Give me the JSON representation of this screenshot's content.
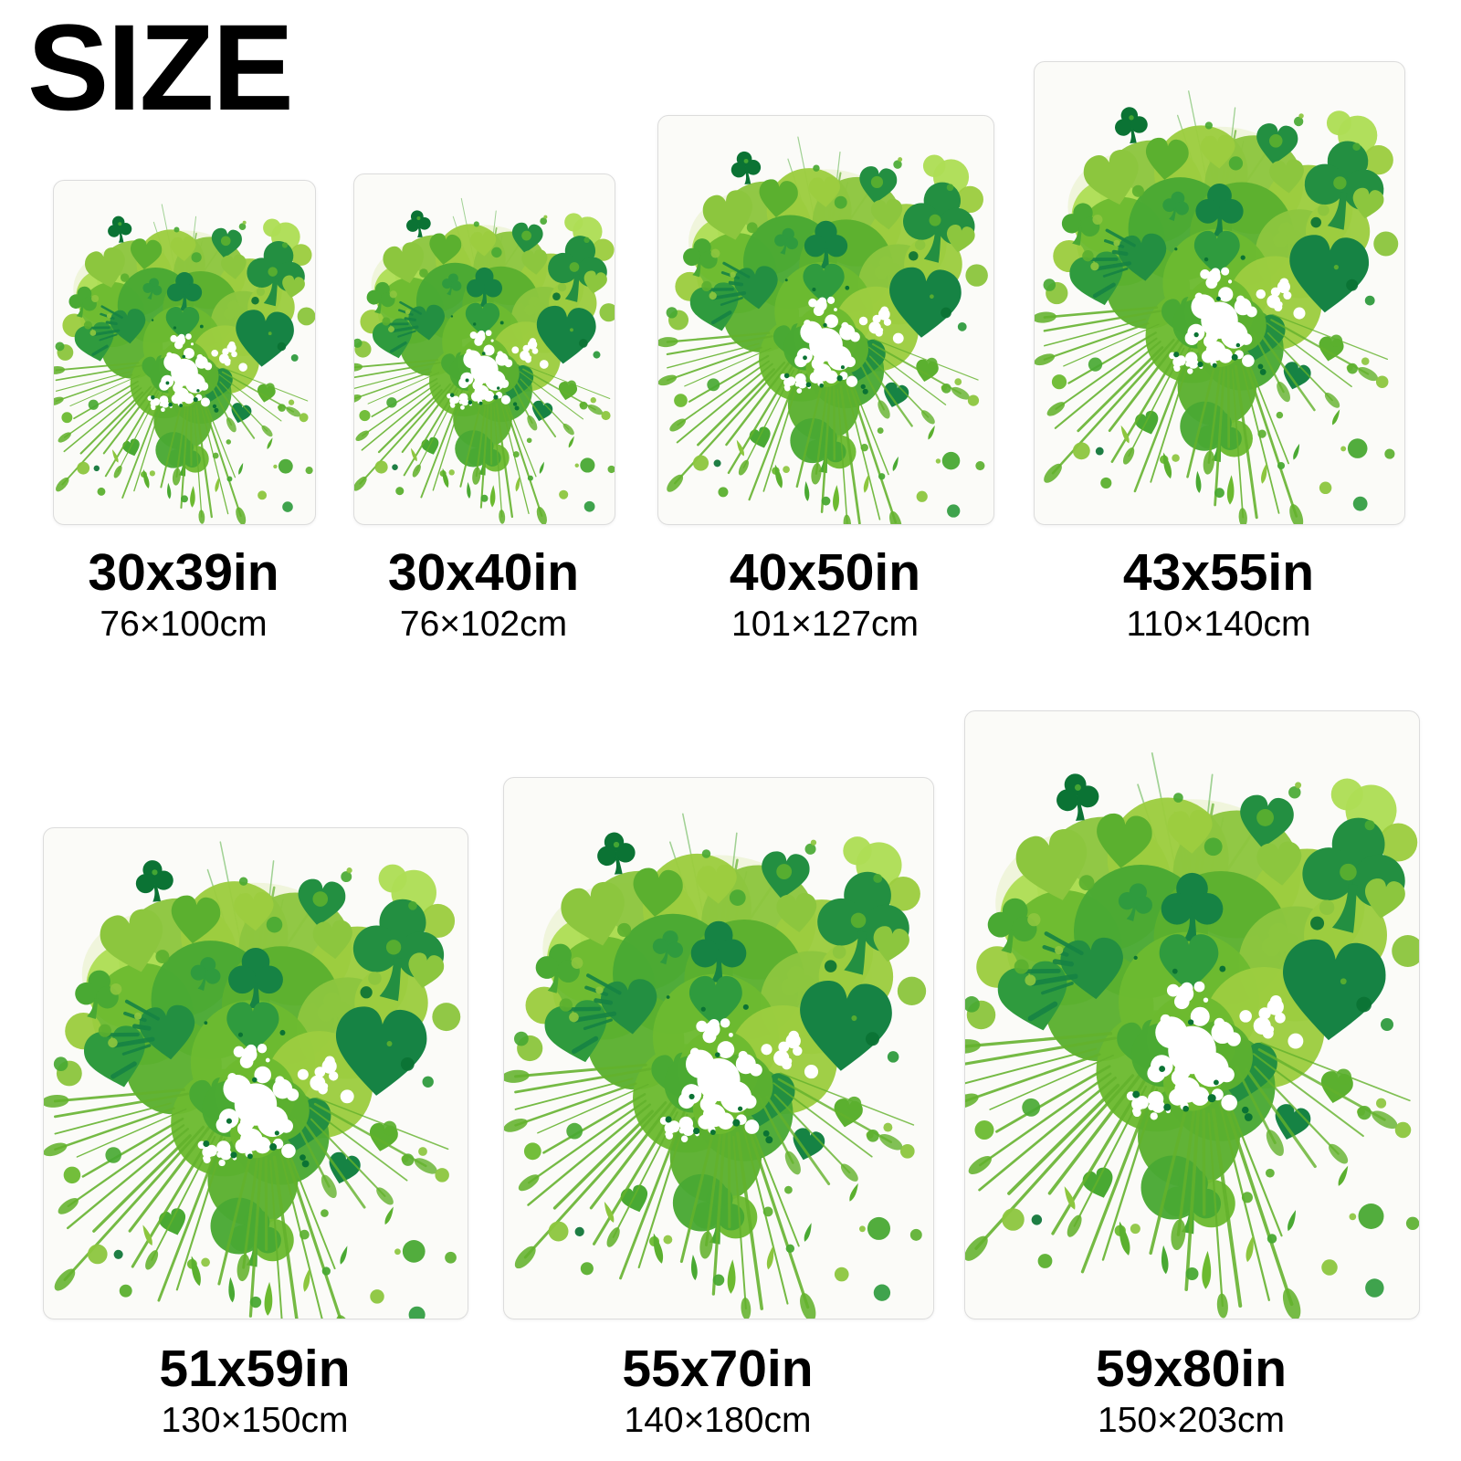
{
  "title": "SIZE",
  "sizes": [
    {
      "inch": "30x39in",
      "cm": "76×100cm"
    },
    {
      "inch": "30x40in",
      "cm": "76×102cm"
    },
    {
      "inch": "40x50in",
      "cm": "101×127cm"
    },
    {
      "inch": "43x55in",
      "cm": "110×140cm"
    },
    {
      "inch": "51x59in",
      "cm": "130×150cm"
    },
    {
      "inch": "55x70in",
      "cm": "140×180cm"
    },
    {
      "inch": "59x80in",
      "cm": "150×203cm"
    }
  ],
  "artwork": {
    "name": "green-splatter-heart-with-clovers",
    "palette": {
      "lime": "#9ccd3f",
      "lime2": "#aede55",
      "leaf": "#8cc63e",
      "mid": "#5bb02f",
      "mid2": "#6cba30",
      "grass": "#49a933",
      "dark": "#2f9b3e",
      "dark2": "#238f41",
      "forest": "#168344",
      "deep": "#0b7334",
      "ray": "#63b22c",
      "tint": "#edf3d7",
      "white": "#ffffff"
    }
  }
}
